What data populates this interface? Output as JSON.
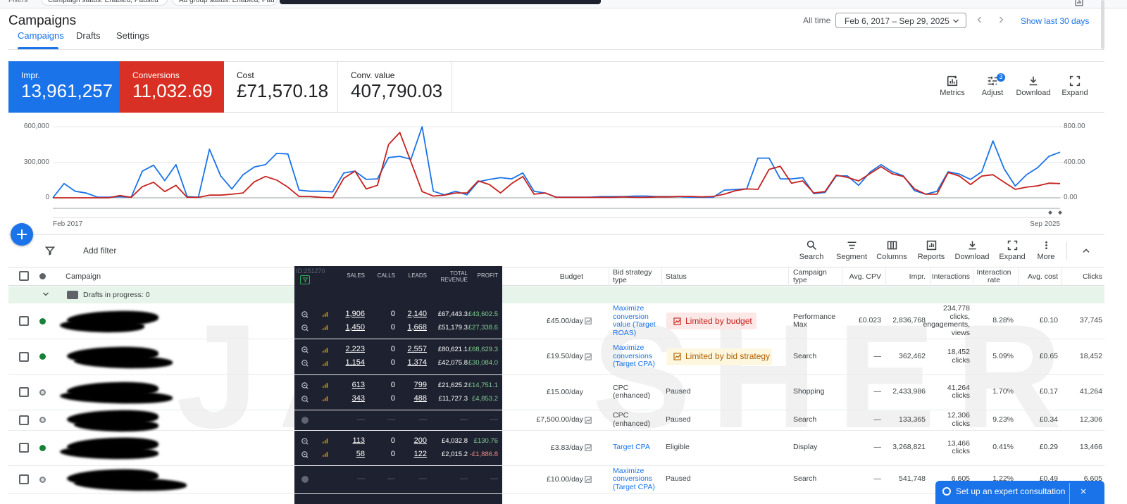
{
  "filters": {
    "label": "Filters",
    "chips": [
      "Campaign status: Enabled, Paused",
      "Ad group status: Enabled, Paus"
    ]
  },
  "header": {
    "title": "Campaigns",
    "range_label": "All time",
    "date_range": "Feb 6, 2017 – Sep 29, 2025",
    "show_last": "Show last 30 days"
  },
  "tabs": {
    "items": [
      "Campaigns",
      "Drafts",
      "Settings"
    ],
    "active": 0
  },
  "scorecards": [
    {
      "label": "Impr.",
      "value": "13,961,257",
      "color": "#1a73e8"
    },
    {
      "label": "Conversions",
      "value": "11,032.69",
      "color": "#d93025"
    },
    {
      "label": "Cost",
      "value": "£71,570.18"
    },
    {
      "label": "Conv. value",
      "value": "407,790.03"
    }
  ],
  "chart_tools": [
    {
      "label": "Metrics"
    },
    {
      "label": "Adjust",
      "badge": 3
    },
    {
      "label": "Download"
    },
    {
      "label": "Expand"
    }
  ],
  "chart_data": {
    "type": "line",
    "categories": [
      "Feb 2017",
      null,
      null,
      null,
      null,
      null,
      null,
      null,
      null,
      null,
      null,
      null,
      null,
      null,
      null,
      null,
      null,
      null,
      null,
      null,
      null,
      null,
      null,
      null,
      null,
      null,
      null,
      null,
      null,
      null,
      null,
      null,
      null,
      null,
      null,
      null,
      null,
      null,
      null,
      null,
      null,
      null,
      null,
      null,
      null,
      null,
      null,
      null,
      null,
      null,
      null,
      null,
      null,
      null,
      null,
      null,
      null,
      null,
      null,
      null,
      null,
      null,
      null,
      null,
      null,
      null,
      null,
      null,
      null,
      null,
      null,
      null,
      null,
      null,
      null,
      null,
      null,
      null,
      null,
      null,
      null,
      null,
      null,
      null,
      null,
      null,
      null,
      null,
      null,
      null,
      "Sep 2025"
    ],
    "series": [
      {
        "color": "#1a73e8",
        "values": [
          0,
          120000,
          55000,
          40000,
          5000,
          5000,
          10000,
          5000,
          225000,
          275000,
          145000,
          280000,
          10000,
          5000,
          410000,
          185000,
          75000,
          195000,
          260000,
          280000,
          375000,
          370000,
          65000,
          55000,
          55000,
          50000,
          210000,
          225000,
          155000,
          160000,
          340000,
          350000,
          325000,
          600000,
          55000,
          25000,
          55000,
          25000,
          135000,
          155000,
          170000,
          160000,
          210000,
          55000,
          40000,
          5000,
          5000,
          5000,
          5000,
          10000,
          10000,
          10000,
          15000,
          15000,
          10000,
          10000,
          10000,
          5000,
          5000,
          5000,
          65000,
          70000,
          75000,
          335000,
          335000,
          160000,
          160000,
          170000,
          35000,
          45000,
          185000,
          185000,
          105000,
          215000,
          280000,
          220000,
          185000,
          60000,
          30000,
          55000,
          220000,
          200000,
          155000,
          220000,
          480000,
          245000,
          100000,
          195000,
          255000,
          350000,
          385000
        ]
      },
      {
        "color": "#c5221f",
        "axis": "y2",
        "values": [
          0,
          0,
          0,
          0,
          0,
          0,
          25,
          5,
          125,
          175,
          70,
          140,
          5,
          5,
          30,
          30,
          40,
          55,
          180,
          240,
          200,
          120,
          15,
          15,
          5,
          0,
          220,
          300,
          100,
          140,
          600,
          735,
          405,
          70,
          20,
          30,
          55,
          55,
          190,
          150,
          55,
          160,
          240,
          40,
          55,
          5,
          5,
          5,
          5,
          5,
          5,
          10,
          5,
          5,
          10,
          10,
          15,
          15,
          10,
          15,
          40,
          80,
          100,
          95,
          320,
          355,
          165,
          190,
          55,
          70,
          255,
          230,
          190,
          270,
          350,
          270,
          240,
          100,
          40,
          40,
          285,
          245,
          150,
          245,
          260,
          175,
          95,
          120,
          135,
          165,
          160
        ]
      }
    ],
    "ylim": [
      0,
      600000
    ],
    "yticks": [
      {
        "value": 600000,
        "label": "600,000"
      },
      {
        "value": 300000,
        "label": "300,000"
      },
      0
    ],
    "y2lim": [
      0,
      800
    ],
    "y2ticks": [
      {
        "value": 800,
        "label": "800.00"
      },
      {
        "value": 400,
        "label": "400.00"
      },
      {
        "value": 0,
        "label": "0.00"
      }
    ],
    "grid": true
  },
  "filter_bar": {
    "add_filter": "Add filter",
    "tools": [
      "Search",
      "Segment",
      "Columns",
      "Reports",
      "Download",
      "Expand",
      "More"
    ]
  },
  "table": {
    "columns": [
      "Campaign",
      "Budget",
      "Bid strategy type",
      "Status",
      "Campaign type",
      "Avg. CPV",
      "Impr.",
      "Interactions",
      "Interaction rate",
      "Avg. cost",
      "Clicks"
    ],
    "overlay": {
      "id": "ID:251270",
      "columns": [
        "SALES",
        "CALLS",
        "LEADS",
        "TOTAL REVENUE",
        "PROFIT"
      ]
    },
    "drafts": "Drafts in progress: 0",
    "rows": [
      {
        "state": "enabled",
        "overlay": [
          [
            "1,906",
            "0",
            "2,140",
            "£67,443.3",
            "£43,602.5"
          ],
          [
            "1,450",
            "0",
            "1,668",
            "£51,179.3",
            "£27,338.6"
          ]
        ],
        "budget": "£45.00/day",
        "budget_icon": true,
        "bid": "Maximize conversion value (Target ROAS)",
        "bid_link": true,
        "status": "Limited by budget",
        "status_style": "error",
        "type": "Performance Max",
        "cpv": "£0.023",
        "impr": "2,836,768",
        "interactions": "234,778 clicks, engagements, views",
        "rate": "8.28%",
        "avg_cost": "£0.10",
        "clicks": "37,745"
      },
      {
        "state": "enabled",
        "overlay": [
          [
            "2,223",
            "0",
            "2,557",
            "£80,621.1",
            "£68,629.3"
          ],
          [
            "1,154",
            "0",
            "1,374",
            "£42,075.8",
            "£30,084.0"
          ]
        ],
        "budget": "£19.50/day",
        "budget_icon": true,
        "bid": "Maximize conversions (Target CPA)",
        "bid_link": true,
        "status": "Limited by bid strategy",
        "status_style": "warning",
        "type": "Search",
        "cpv": "—",
        "impr": "362,462",
        "interactions": "18,452 clicks",
        "rate": "5.09%",
        "avg_cost": "£0.65",
        "clicks": "18,452"
      },
      {
        "state": "paused",
        "overlay": [
          [
            "613",
            "0",
            "799",
            "£21,625.2",
            "£14,751.1"
          ],
          [
            "343",
            "0",
            "488",
            "£11,727.3",
            "£4,853.2"
          ]
        ],
        "budget": "£15.00/day",
        "budget_icon": false,
        "bid": "CPC (enhanced)",
        "bid_link": false,
        "status": "Paused",
        "status_style": "plain",
        "type": "Shopping",
        "cpv": "—",
        "impr": "2,433,986",
        "interactions": "41,264 clicks",
        "rate": "1.70%",
        "avg_cost": "£0.17",
        "clicks": "41,264"
      },
      {
        "state": "paused",
        "overlay": [
          [
            "—",
            "—",
            "—",
            "—",
            "—"
          ]
        ],
        "budget": "£7,500.00/day",
        "budget_icon": true,
        "bid": "CPC (enhanced)",
        "bid_link": false,
        "status": "Paused",
        "status_style": "plain",
        "type": "Search",
        "cpv": "—",
        "impr": "133,365",
        "interactions": "12,306 clicks",
        "rate": "9.23%",
        "avg_cost": "£0.34",
        "clicks": "12,306"
      },
      {
        "state": "enabled",
        "overlay": [
          [
            "113",
            "0",
            "200",
            "£4,032.8",
            "£130.76"
          ],
          [
            "58",
            "0",
            "122",
            "£2,015.2",
            "-£1,886.8"
          ]
        ],
        "budget": "£3.83/day",
        "budget_icon": true,
        "bid": "Target CPA",
        "bid_link": true,
        "status": "Eligible",
        "status_style": "plain",
        "type": "Display",
        "cpv": "—",
        "impr": "3,268,821",
        "interactions": "13,466 clicks",
        "rate": "0.41%",
        "avg_cost": "£0.29",
        "clicks": "13,466"
      },
      {
        "state": "paused",
        "overlay": [
          [
            "—",
            "—",
            "—",
            "—",
            "—"
          ]
        ],
        "budget": "£10.00/day",
        "budget_icon": true,
        "bid": "Maximize conversions (Target CPA)",
        "bid_link": true,
        "status": "Paused",
        "status_style": "plain",
        "type": "Search",
        "cpv": "—",
        "impr": "541,748",
        "interactions": "6,605",
        "rate": "1.22%",
        "avg_cost": "£0.49",
        "clicks": "6,605"
      }
    ]
  },
  "watermark": "JAN SHER ALI",
  "banner": "Set up an expert consultation"
}
